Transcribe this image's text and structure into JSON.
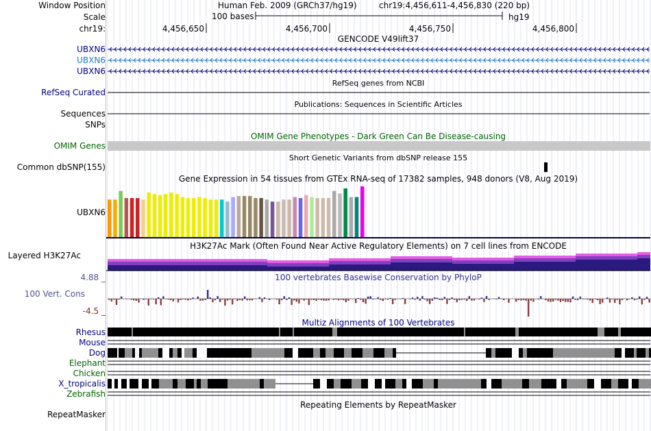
{
  "labels": {
    "window_position": "Window Position",
    "scale": "Scale",
    "chrom": "chr19:",
    "gencode_1": "UBXN6",
    "gencode_2": "UBXN6",
    "gencode_3": "UBXN6",
    "refseq": "RefSeq Curated",
    "sequences": "Sequences",
    "snps": "SNPs",
    "omim": "OMIM Genes",
    "common_dbsnp": "Common dbSNP(155)",
    "gtex_gene": "UBXN6",
    "h3k27ac": "Layered H3K27Ac",
    "cons_max": "4.88 _",
    "cons": "100 Vert. Cons",
    "cons_min": "-4.5 _",
    "rhesus": "Rhesus",
    "mouse": "Mouse",
    "dog": "Dog",
    "elephant": "Elephant",
    "chicken": "Chicken",
    "xtrop": "X_tropicalis",
    "zebrafish": "Zebrafish",
    "repeatmasker": "RepeatMasker"
  },
  "header": {
    "assembly": "Human Feb. 2009 (GRCh37/hg19)",
    "position": "chr19:4,456,611-4,456,830 (220 bp)",
    "scale_text": "100 bases",
    "scale_db": "hg19",
    "ticks": [
      "4,456,650",
      "4,456,700",
      "4,456,750",
      "4,456,800"
    ]
  },
  "titles": {
    "gencode": "GENCODE V49lift37",
    "refseq": "RefSeq genes from NCBI",
    "publications": "Publications: Sequences in Scientific Articles",
    "omim": "OMIM Gene Phenotypes - Dark Green Can Be Disease-causing",
    "dbsnp": "Short Genetic Variants from dbSNP release 155",
    "gtex": "Gene Expression in 54 tissues from GTEx RNA-seq of 17382 samples, 948 donors (V8, Aug 2019)",
    "h3k27ac": "H3K27Ac Mark (Often Found Near Active Regulatory Elements) on 7 cell lines from ENCODE",
    "cons": "100 vertebrates Basewise Conservation by PhyloP",
    "multiz": "Multiz Alignments of 100 Vertebrates",
    "repeatmasker": "Repeating Elements by RepeatMasker"
  },
  "colors": {
    "gencode_dark": "#0c0c78",
    "gencode_light": "#1e78c8",
    "omim_bar": "#c8c8c8",
    "cons_pos": "#2d2d8c",
    "cons_neg": "#8c3c3c",
    "h3k_top": "#e040e0",
    "h3k_mid": "#8040c0",
    "h3k_base": "#2a1a80"
  },
  "gtex_bars": {
    "colors": [
      "#ff9900",
      "#ffaa00",
      "#77cc55",
      "#bb5555",
      "#cc2222",
      "#cc2222",
      "#ffcc88",
      "#eeee00",
      "#eeee00",
      "#eeee00",
      "#eeee00",
      "#eeee00",
      "#eeee00",
      "#eeee00",
      "#eeee00",
      "#eeee00",
      "#eeee00",
      "#eeee00",
      "#eeee00",
      "#eeee00",
      "#00cccc",
      "#99bbcc",
      "#aaaaff",
      "#bbaa99",
      "#998866",
      "#998866",
      "#998866",
      "#665544",
      "#aaaaaa",
      "#775599",
      "#ccbbaa",
      "#ccbbaa",
      "#ccbbaa",
      "#cc88aa",
      "#6666ee",
      "#eeaaaa",
      "#aaee99",
      "#ccbbaa",
      "#ccbbaa",
      "#ccbbaa",
      "#aaaaaa",
      "#bbbbbb",
      "#008844",
      "#aaaaaa",
      "#008877",
      "#ee00ee"
    ],
    "values": [
      0.74,
      0.74,
      0.91,
      0.77,
      0.77,
      0.77,
      0.74,
      0.88,
      0.85,
      0.83,
      0.85,
      0.88,
      0.85,
      0.79,
      0.77,
      0.77,
      0.79,
      0.77,
      0.74,
      0.74,
      0.74,
      0.7,
      0.79,
      0.81,
      0.81,
      0.81,
      0.77,
      0.77,
      0.74,
      0.7,
      0.7,
      0.74,
      0.74,
      0.79,
      0.77,
      0.83,
      0.79,
      0.77,
      0.77,
      0.77,
      0.91,
      0.86,
      0.96,
      0.79,
      0.79,
      1.0
    ]
  },
  "multiz_segments": {
    "rhesus": [
      [
        0,
        35,
        "b"
      ],
      [
        35,
        37,
        "g"
      ],
      [
        37,
        250,
        "b"
      ],
      [
        250,
        252,
        "g"
      ],
      [
        252,
        270,
        "b"
      ],
      [
        270,
        272,
        "g"
      ],
      [
        272,
        328,
        "b"
      ],
      [
        328,
        335,
        "g"
      ],
      [
        335,
        520,
        "b"
      ],
      [
        520,
        522,
        "g"
      ],
      [
        522,
        595,
        "b"
      ],
      [
        595,
        600,
        "g"
      ],
      [
        600,
        715,
        "b"
      ],
      [
        715,
        725,
        "g"
      ],
      [
        725,
        745,
        "b"
      ],
      [
        745,
        749,
        "g"
      ],
      [
        749,
        795,
        "b"
      ]
    ],
    "dog": [
      [
        0,
        14,
        "b"
      ],
      [
        14,
        16,
        "w"
      ],
      [
        16,
        25,
        "b"
      ],
      [
        25,
        36,
        "g"
      ],
      [
        36,
        40,
        "b"
      ],
      [
        40,
        46,
        "w"
      ],
      [
        46,
        50,
        "b"
      ],
      [
        50,
        74,
        "g"
      ],
      [
        74,
        80,
        "b"
      ],
      [
        80,
        90,
        "w"
      ],
      [
        90,
        95,
        "b"
      ],
      [
        95,
        102,
        "g"
      ],
      [
        102,
        108,
        "b"
      ],
      [
        108,
        112,
        "w"
      ],
      [
        112,
        124,
        "g"
      ],
      [
        124,
        130,
        "b"
      ],
      [
        130,
        145,
        "w"
      ],
      [
        145,
        210,
        "b"
      ],
      [
        210,
        220,
        "g"
      ],
      [
        220,
        258,
        "g"
      ],
      [
        258,
        270,
        "b"
      ],
      [
        270,
        278,
        "w"
      ],
      [
        278,
        300,
        "b"
      ],
      [
        300,
        310,
        "g"
      ],
      [
        310,
        318,
        "b"
      ],
      [
        318,
        330,
        "g"
      ],
      [
        330,
        345,
        "b"
      ],
      [
        345,
        356,
        "g"
      ],
      [
        356,
        372,
        "b"
      ],
      [
        372,
        388,
        "g"
      ],
      [
        388,
        404,
        "b"
      ],
      [
        404,
        416,
        "g"
      ],
      [
        416,
        421,
        "b"
      ],
      [
        552,
        560,
        "b"
      ],
      [
        560,
        566,
        "g"
      ],
      [
        566,
        590,
        "b"
      ],
      [
        590,
        600,
        "w"
      ],
      [
        600,
        606,
        "b"
      ],
      [
        606,
        612,
        "g"
      ],
      [
        612,
        650,
        "b"
      ],
      [
        650,
        740,
        "g"
      ],
      [
        740,
        750,
        "b"
      ],
      [
        750,
        755,
        "w"
      ],
      [
        755,
        768,
        "b"
      ],
      [
        768,
        772,
        "g"
      ],
      [
        772,
        785,
        "b"
      ],
      [
        785,
        790,
        "g"
      ],
      [
        790,
        795,
        "b"
      ]
    ],
    "xtrop": [
      [
        0,
        6,
        "b"
      ],
      [
        6,
        10,
        "w"
      ],
      [
        10,
        15,
        "b"
      ],
      [
        15,
        20,
        "w"
      ],
      [
        20,
        28,
        "b"
      ],
      [
        28,
        32,
        "w"
      ],
      [
        32,
        45,
        "b"
      ],
      [
        45,
        50,
        "w"
      ],
      [
        50,
        60,
        "b"
      ],
      [
        60,
        64,
        "w"
      ],
      [
        64,
        75,
        "b"
      ],
      [
        75,
        95,
        "g"
      ],
      [
        95,
        102,
        "b"
      ],
      [
        102,
        114,
        "g"
      ],
      [
        114,
        126,
        "b"
      ],
      [
        126,
        130,
        "g"
      ],
      [
        130,
        136,
        "b"
      ],
      [
        136,
        146,
        "g"
      ],
      [
        146,
        175,
        "b"
      ],
      [
        175,
        222,
        "g"
      ],
      [
        222,
        228,
        "b"
      ],
      [
        228,
        245,
        "g"
      ],
      [
        300,
        310,
        "b"
      ],
      [
        310,
        320,
        "w"
      ],
      [
        320,
        330,
        "b"
      ],
      [
        330,
        340,
        "g"
      ],
      [
        340,
        356,
        "b"
      ],
      [
        356,
        370,
        "g"
      ],
      [
        370,
        380,
        "b"
      ],
      [
        380,
        390,
        "w"
      ],
      [
        390,
        400,
        "b"
      ],
      [
        400,
        405,
        "w"
      ],
      [
        405,
        420,
        "b"
      ],
      [
        420,
        430,
        "g"
      ],
      [
        430,
        436,
        "b"
      ],
      [
        436,
        444,
        "w"
      ],
      [
        444,
        460,
        "b"
      ],
      [
        460,
        476,
        "g"
      ],
      [
        476,
        482,
        "b"
      ],
      [
        482,
        545,
        "g"
      ],
      [
        545,
        553,
        "b"
      ],
      [
        553,
        560,
        "w"
      ],
      [
        560,
        575,
        "b"
      ],
      [
        575,
        605,
        "g"
      ],
      [
        605,
        615,
        "b"
      ],
      [
        615,
        633,
        "g"
      ],
      [
        633,
        655,
        "b"
      ],
      [
        655,
        662,
        "w"
      ],
      [
        662,
        670,
        "b"
      ],
      [
        670,
        700,
        "g"
      ],
      [
        700,
        710,
        "b"
      ],
      [
        710,
        720,
        "w"
      ],
      [
        720,
        735,
        "b"
      ],
      [
        735,
        745,
        "g"
      ],
      [
        745,
        760,
        "b"
      ],
      [
        760,
        765,
        "w"
      ],
      [
        765,
        775,
        "b"
      ],
      [
        775,
        795,
        "g"
      ]
    ]
  }
}
